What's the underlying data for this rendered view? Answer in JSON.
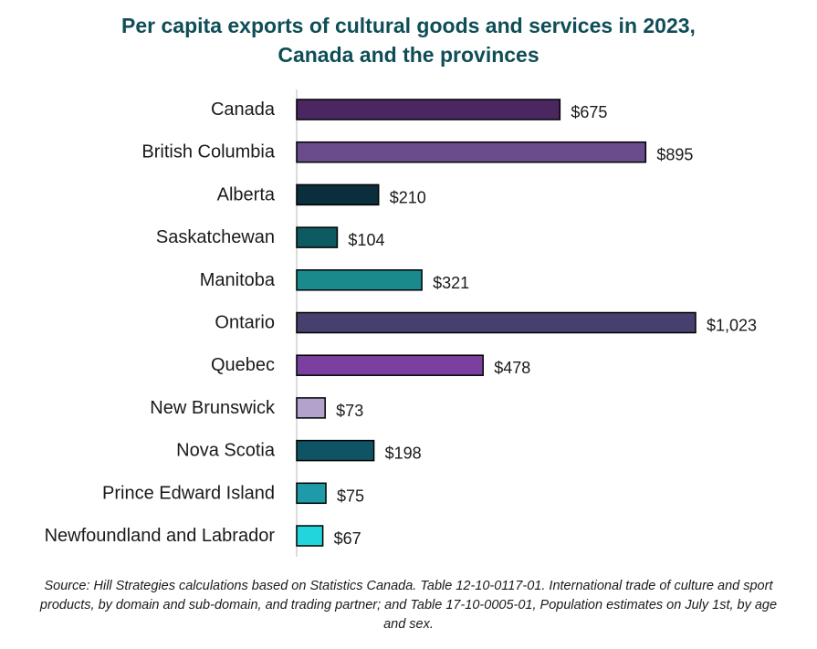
{
  "chart_data": {
    "type": "bar",
    "orientation": "horizontal",
    "title_lines": [
      "Per capita exports of cultural goods and services in 2023,",
      "Canada and the provinces"
    ],
    "categories": [
      "Canada",
      "British Columbia",
      "Alberta",
      "Saskatchewan",
      "Manitoba",
      "Ontario",
      "Quebec",
      "New Brunswick",
      "Nova Scotia",
      "Prince Edward Island",
      "Newfoundland and Labrador"
    ],
    "values": [
      675,
      895,
      210,
      104,
      321,
      1023,
      478,
      73,
      198,
      75,
      67
    ],
    "value_labels": [
      "$675",
      "$895",
      "$210",
      "$104",
      "$321",
      "$1,023",
      "$478",
      "$73",
      "$198",
      "$75",
      "$67"
    ],
    "colors": [
      "#4a2760",
      "#6a4c8c",
      "#0b2e3c",
      "#0d5a60",
      "#1a8a8c",
      "#46406e",
      "#7b3fa0",
      "#b3a2cc",
      "#0f5465",
      "#1e9aa8",
      "#22d4dc"
    ],
    "bar_stroke": "#000000",
    "xlim": [
      0,
      1023
    ],
    "grid": false,
    "legend": "none",
    "source_note": "Source:  Hill Strategies calculations  based on Statistics Canada. Table 12-10-0117-01. International trade of culture and sport products, by domain and sub-domain, and trading partner; and Table 17-10-0005-01, Population estimates on July 1st, by age and sex."
  }
}
